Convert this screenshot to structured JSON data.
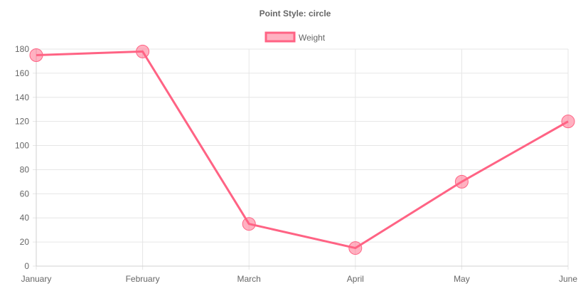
{
  "chart_data": {
    "type": "line",
    "title": "Point Style: circle",
    "categories": [
      "January",
      "February",
      "March",
      "April",
      "May",
      "June"
    ],
    "series": [
      {
        "name": "Weight",
        "values": [
          175,
          178,
          35,
          15,
          70,
          120
        ],
        "color": "#ff6384",
        "point_fill": "rgba(255, 99, 132, 0.5)",
        "point_style": "circle"
      }
    ],
    "yticks": [
      0,
      20,
      40,
      60,
      80,
      100,
      120,
      140,
      160,
      180
    ],
    "ylim": [
      0,
      180
    ],
    "grid": true,
    "legend_position": "top-center"
  }
}
